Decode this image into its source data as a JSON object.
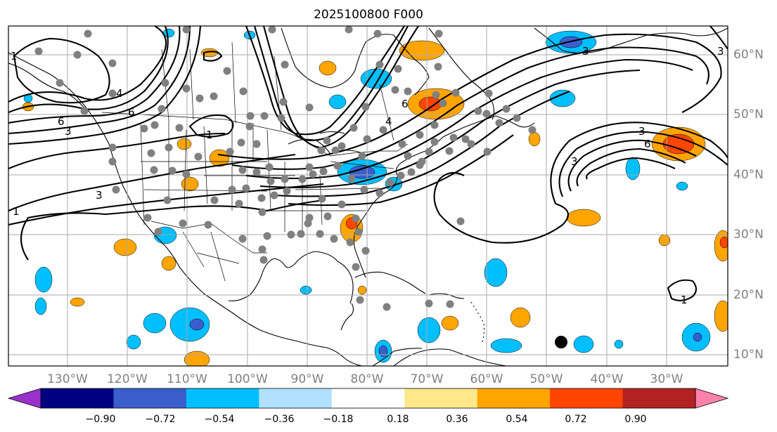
{
  "title": "2025100800 F000",
  "lon_labels": [
    "130°W",
    "120°W",
    "110°W",
    "100°W",
    "90°W",
    "80°W",
    "70°W",
    "60°W",
    "50°W",
    "40°W",
    "30°W"
  ],
  "lat_labels": [
    "60°N",
    "50°N",
    "40°N",
    "30°N",
    "20°N",
    "10°N"
  ],
  "colorbar": {
    "colors": [
      "#9932cc",
      "#000080",
      "#3a5fcd",
      "#00bfff",
      "#b0e2ff",
      "#ffffff",
      "#ffe88a",
      "#ffa500",
      "#ff4500",
      "#b22222",
      "#ff82ab"
    ],
    "ticks": [
      "−0.90",
      "−0.72",
      "−0.54",
      "−0.36",
      "−0.18",
      "0.18",
      "0.36",
      "0.54",
      "0.72",
      "0.90"
    ]
  },
  "contour_labels": [
    "1",
    "3",
    "6",
    "4",
    "1",
    "3",
    "6",
    "3",
    "6",
    "1",
    "3",
    "3",
    "1",
    "4",
    "3",
    "6"
  ],
  "map_colors": {
    "orange": "#ffa500",
    "red_orange": "#ff4500",
    "light_blue": "#00bfff",
    "blue": "#3a5fcd",
    "station_gray": "#808080"
  }
}
